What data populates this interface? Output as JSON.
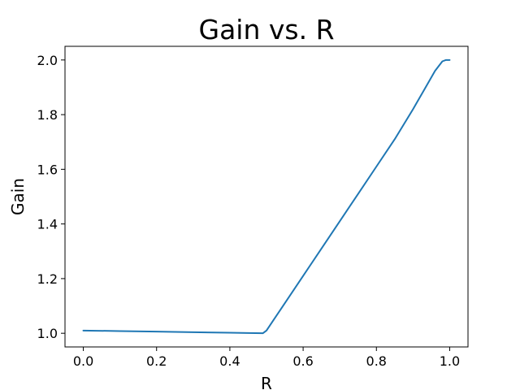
{
  "chart_data": {
    "type": "line",
    "title": "Gain vs. R",
    "xlabel": "R",
    "ylabel": "Gain",
    "xlim": [
      -0.05,
      1.05
    ],
    "ylim": [
      0.95,
      2.05
    ],
    "grid": false,
    "legend": "none",
    "x_ticks": [
      "0.0",
      "0.2",
      "0.4",
      "0.6",
      "0.8",
      "1.0"
    ],
    "y_ticks": [
      "1.0",
      "1.2",
      "1.4",
      "1.6",
      "1.8",
      "2.0"
    ],
    "series": [
      {
        "color": "#1f77b4",
        "x": [
          0.0,
          0.1,
          0.2,
          0.3,
          0.4,
          0.45,
          0.49,
          0.5,
          0.52,
          0.55,
          0.6,
          0.65,
          0.7,
          0.75,
          0.8,
          0.85,
          0.9,
          0.93,
          0.96,
          0.98,
          0.99,
          1.0
        ],
        "y": [
          1.01,
          1.008,
          1.006,
          1.004,
          1.002,
          1.001,
          1.0,
          1.01,
          1.05,
          1.11,
          1.21,
          1.31,
          1.41,
          1.51,
          1.61,
          1.71,
          1.82,
          1.89,
          1.96,
          1.995,
          2.0,
          2.0
        ]
      }
    ]
  }
}
